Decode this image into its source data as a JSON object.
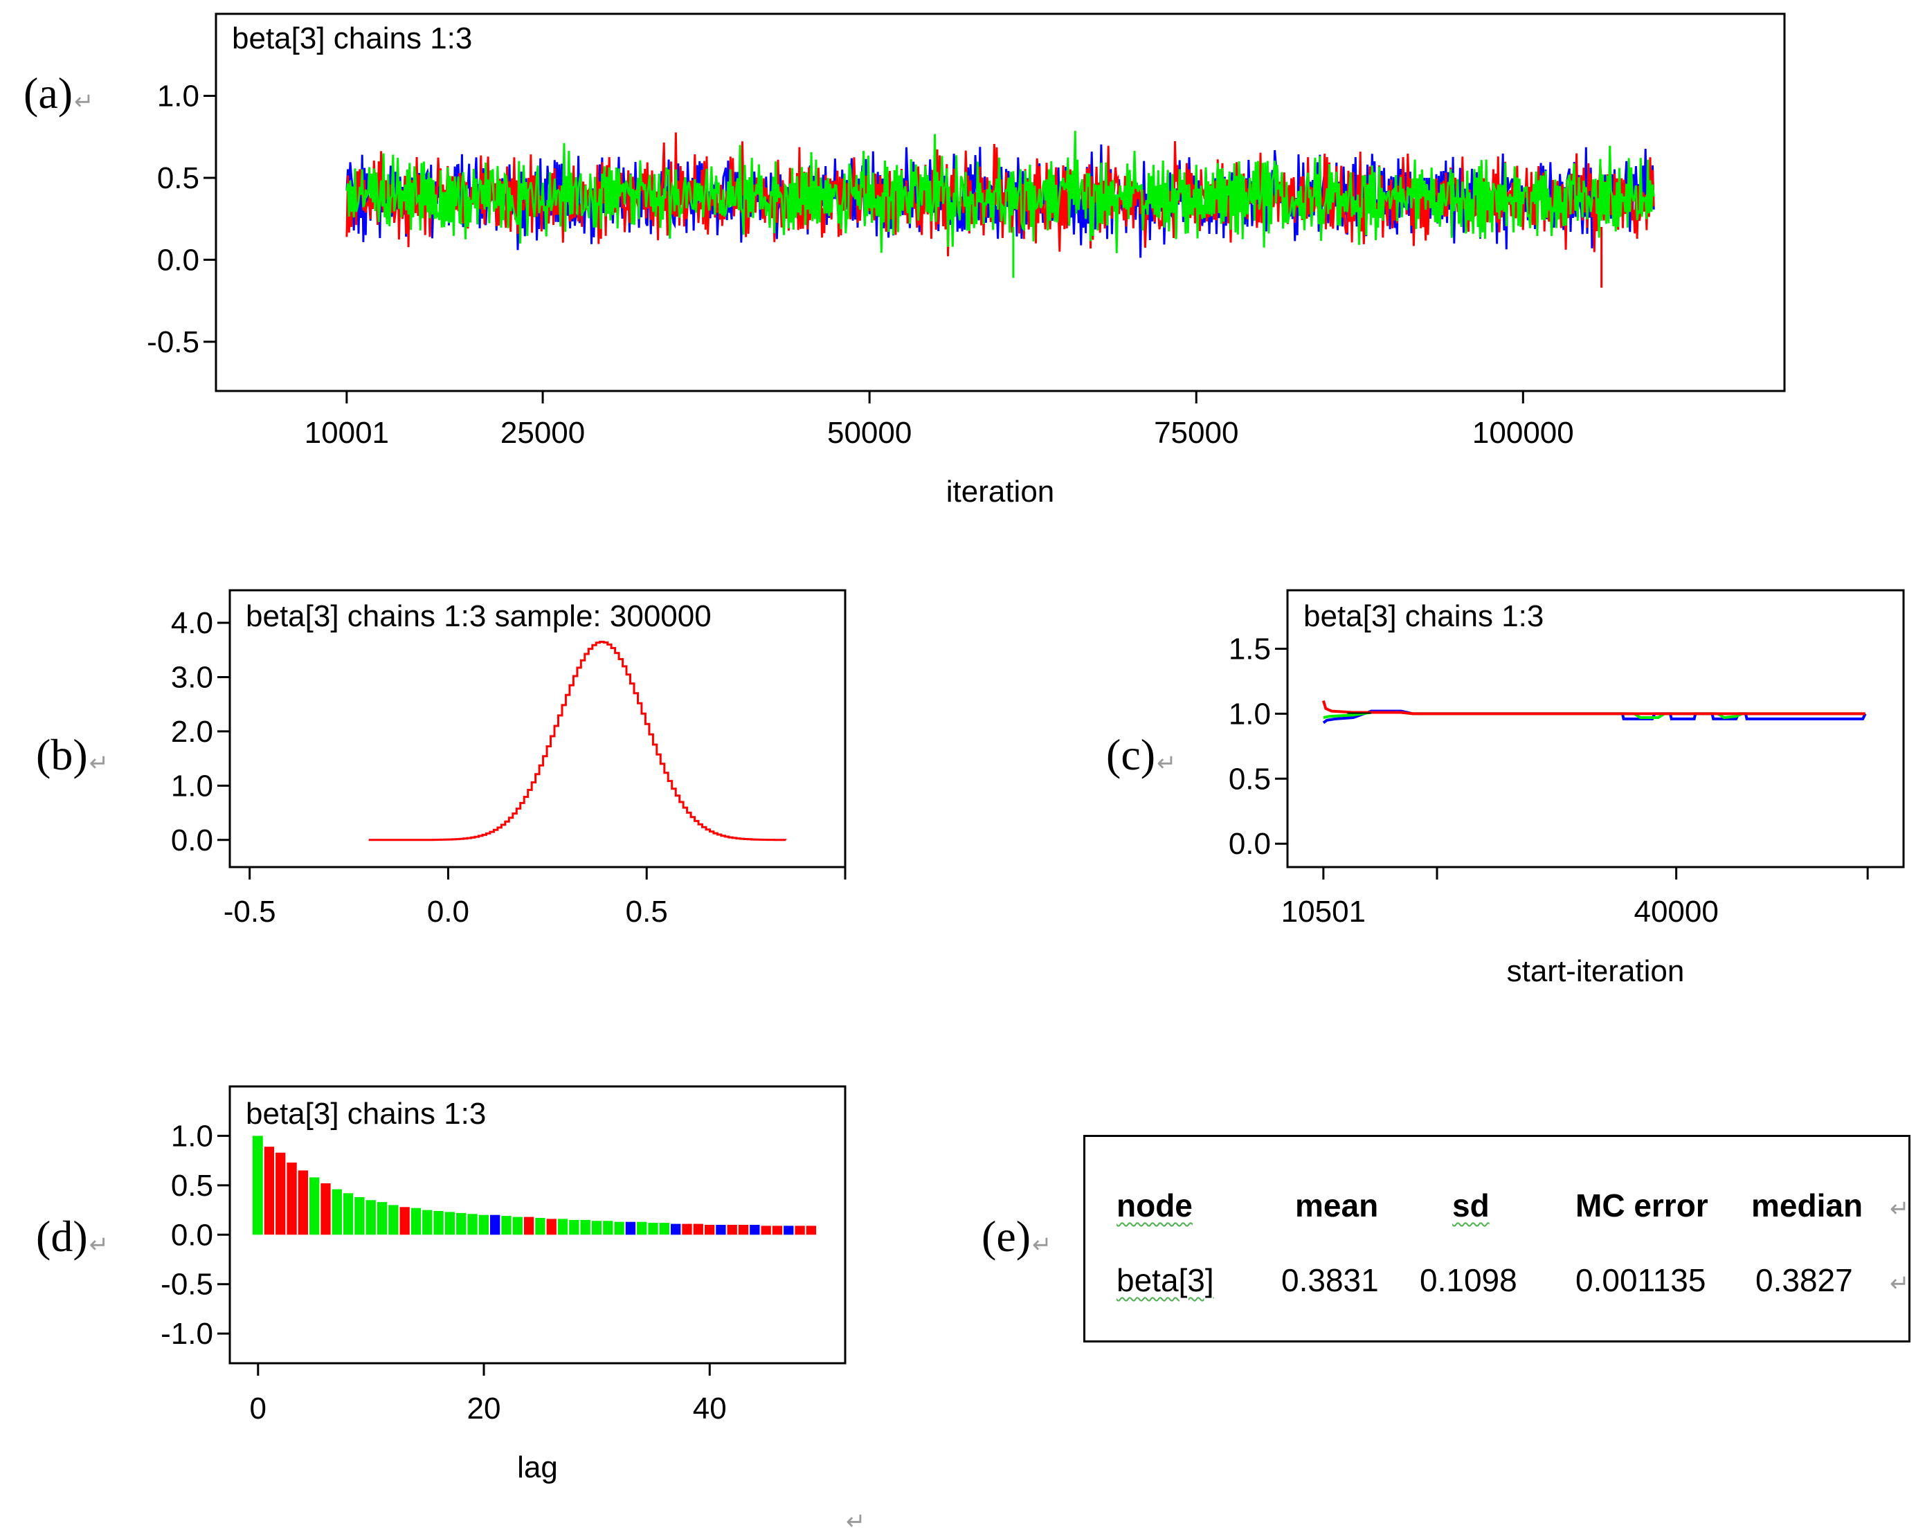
{
  "panel_labels": [
    "(a)",
    "(b)",
    "(c)",
    "(d)",
    "(e)"
  ],
  "return_glyph": "↵",
  "colors": {
    "chain1": "#ff0000",
    "chain2": "#0000ff",
    "chain3": "#00ee00",
    "axis": "#000000"
  },
  "chart_data": [
    {
      "id": "a",
      "type": "line",
      "title": "beta[3] chains 1:3",
      "xlabel": "iteration",
      "ylabel": "",
      "xlim": [
        0,
        120000
      ],
      "ylim": [
        -0.8,
        1.5
      ],
      "x_ticks": [
        10001,
        25000,
        50000,
        75000,
        100000
      ],
      "y_ticks": [
        -0.5,
        0.0,
        0.5,
        1.0
      ],
      "y_tick_labels": [
        "-0.5",
        "0.0",
        "0.5",
        "1.0"
      ],
      "x_range": [
        10001,
        110000
      ],
      "series": [
        {
          "color": "#0000ff",
          "mean": 0.38,
          "sd": 0.12,
          "seed": 7
        },
        {
          "color": "#ff0000",
          "mean": 0.38,
          "sd": 0.12,
          "seed": 13
        },
        {
          "color": "#00ee00",
          "mean": 0.38,
          "sd": 0.12,
          "seed": 29
        }
      ],
      "notable": [
        {
          "x": 106000,
          "y": -0.17,
          "color": "#ff0000"
        },
        {
          "x": 61000,
          "y": -0.11,
          "color": "#00ee00"
        }
      ]
    },
    {
      "id": "b",
      "type": "line",
      "title": "beta[3] chains 1:3 sample: 300000",
      "xlabel": "",
      "ylabel": "",
      "xlim": [
        -0.55,
        1.0
      ],
      "ylim": [
        -0.5,
        4.6
      ],
      "x_ticks": [
        -0.5,
        0.0,
        0.5,
        1.0
      ],
      "x_tick_labels": [
        "-0.5",
        "0.0",
        "0.5",
        ""
      ],
      "y_ticks": [
        0.0,
        1.0,
        2.0,
        3.0,
        4.0
      ],
      "y_tick_labels": [
        "0.0",
        "1.0",
        "2.0",
        "3.0",
        "4.0"
      ],
      "density": {
        "color": "#ff0000",
        "mean": 0.3831,
        "sd": 0.1098,
        "x_from": -0.2,
        "x_to": 0.85,
        "peak": 3.65
      }
    },
    {
      "id": "c",
      "type": "line",
      "title": "beta[3] chains 1:3",
      "xlabel": "start-iteration",
      "ylabel": "",
      "xlim": [
        7500,
        59000
      ],
      "ylim": [
        -0.18,
        1.95
      ],
      "x_ticks": [
        10501,
        20000,
        40000,
        56000
      ],
      "x_tick_labels": [
        "10501",
        "",
        "40000",
        ""
      ],
      "y_ticks": [
        0.0,
        0.5,
        1.0,
        1.5
      ],
      "y_tick_labels": [
        "0.0",
        "0.5",
        "1.0",
        "1.5"
      ],
      "series": [
        {
          "color": "#0000ff",
          "points": [
            [
              10501,
              0.93
            ],
            [
              10800,
              0.95
            ],
            [
              11500,
              0.96
            ],
            [
              13000,
              0.97
            ],
            [
              14500,
              1.02
            ],
            [
              17000,
              1.02
            ],
            [
              18000,
              1.0
            ],
            [
              35500,
              1.0
            ],
            [
              35600,
              0.96
            ],
            [
              38000,
              0.96
            ],
            [
              38200,
              1.0
            ],
            [
              39500,
              1.0
            ],
            [
              39600,
              0.96
            ],
            [
              41500,
              0.96
            ],
            [
              41600,
              1.0
            ],
            [
              43000,
              1.0
            ],
            [
              43100,
              0.96
            ],
            [
              45000,
              0.96
            ],
            [
              45200,
              1.0
            ],
            [
              45800,
              1.0
            ],
            [
              45900,
              0.96
            ],
            [
              55600,
              0.96
            ],
            [
              55800,
              1.0
            ]
          ]
        },
        {
          "color": "#00ee00",
          "points": [
            [
              10501,
              0.97
            ],
            [
              11000,
              0.98
            ],
            [
              13000,
              0.99
            ],
            [
              14500,
              1.01
            ],
            [
              17000,
              1.01
            ],
            [
              18000,
              1.0
            ],
            [
              36500,
              1.0
            ],
            [
              37000,
              0.97
            ],
            [
              38500,
              0.97
            ],
            [
              39000,
              1.0
            ],
            [
              43500,
              1.0
            ],
            [
              44000,
              0.97
            ],
            [
              45000,
              0.98
            ],
            [
              45500,
              1.0
            ],
            [
              55800,
              1.0
            ]
          ]
        },
        {
          "color": "#ff0000",
          "points": [
            [
              10501,
              1.1
            ],
            [
              10700,
              1.04
            ],
            [
              11200,
              1.02
            ],
            [
              13000,
              1.01
            ],
            [
              17000,
              1.01
            ],
            [
              18000,
              1.0
            ],
            [
              55800,
              1.0
            ]
          ]
        }
      ]
    },
    {
      "id": "d",
      "type": "bar",
      "title": "beta[3] chains 1:3",
      "xlabel": "lag",
      "ylabel": "",
      "xlim": [
        -2.5,
        52
      ],
      "ylim": [
        -1.3,
        1.5
      ],
      "x_ticks": [
        0,
        20,
        40
      ],
      "x_tick_labels": [
        "0",
        "20",
        "40"
      ],
      "y_ticks": [
        -1.0,
        -0.5,
        0.0,
        0.5,
        1.0
      ],
      "y_tick_labels": [
        "-1.0",
        "-0.5",
        "0.0",
        "0.5",
        "1.0"
      ],
      "lags": [
        0,
        1,
        2,
        3,
        4,
        5,
        6,
        7,
        8,
        9,
        10,
        11,
        12,
        13,
        14,
        15,
        16,
        17,
        18,
        19,
        20,
        21,
        22,
        23,
        24,
        25,
        26,
        27,
        28,
        29,
        30,
        31,
        32,
        33,
        34,
        35,
        36,
        37,
        38,
        39,
        40,
        41,
        42,
        43,
        44,
        45,
        46,
        47,
        48,
        49
      ],
      "values": [
        1.0,
        0.89,
        0.83,
        0.73,
        0.65,
        0.58,
        0.52,
        0.46,
        0.42,
        0.38,
        0.35,
        0.33,
        0.3,
        0.28,
        0.27,
        0.25,
        0.24,
        0.23,
        0.22,
        0.21,
        0.2,
        0.2,
        0.19,
        0.18,
        0.18,
        0.17,
        0.16,
        0.16,
        0.15,
        0.15,
        0.14,
        0.14,
        0.13,
        0.13,
        0.13,
        0.12,
        0.12,
        0.11,
        0.11,
        0.11,
        0.1,
        0.1,
        0.1,
        0.1,
        0.1,
        0.09,
        0.09,
        0.09,
        0.09,
        0.09
      ],
      "bar_colors": [
        "#00ee00",
        "#ff0000",
        "#ff0000",
        "#ff0000",
        "#ff0000",
        "#00ee00",
        "#ff0000",
        "#00ee00",
        "#00ee00",
        "#00ee00",
        "#00ee00",
        "#00ee00",
        "#00ee00",
        "#ff0000",
        "#00ee00",
        "#00ee00",
        "#00ee00",
        "#00ee00",
        "#00ee00",
        "#00ee00",
        "#00ee00",
        "#0000ff",
        "#00ee00",
        "#00ee00",
        "#ff0000",
        "#00ee00",
        "#ff0000",
        "#00ee00",
        "#00ee00",
        "#00ee00",
        "#00ee00",
        "#00ee00",
        "#00ee00",
        "#0000ff",
        "#00ee00",
        "#00ee00",
        "#00ee00",
        "#0000ff",
        "#ff0000",
        "#ff0000",
        "#ff0000",
        "#0000ff",
        "#ff0000",
        "#ff0000",
        "#0000ff",
        "#ff0000",
        "#ff0000",
        "#0000ff",
        "#ff0000",
        "#ff0000"
      ]
    }
  ],
  "stats_table": {
    "headers": [
      "node",
      "mean",
      "sd",
      "MC error",
      "median"
    ],
    "row": [
      "beta[3]",
      "0.3831",
      "0.1098",
      "0.001135",
      "0.3827"
    ]
  }
}
